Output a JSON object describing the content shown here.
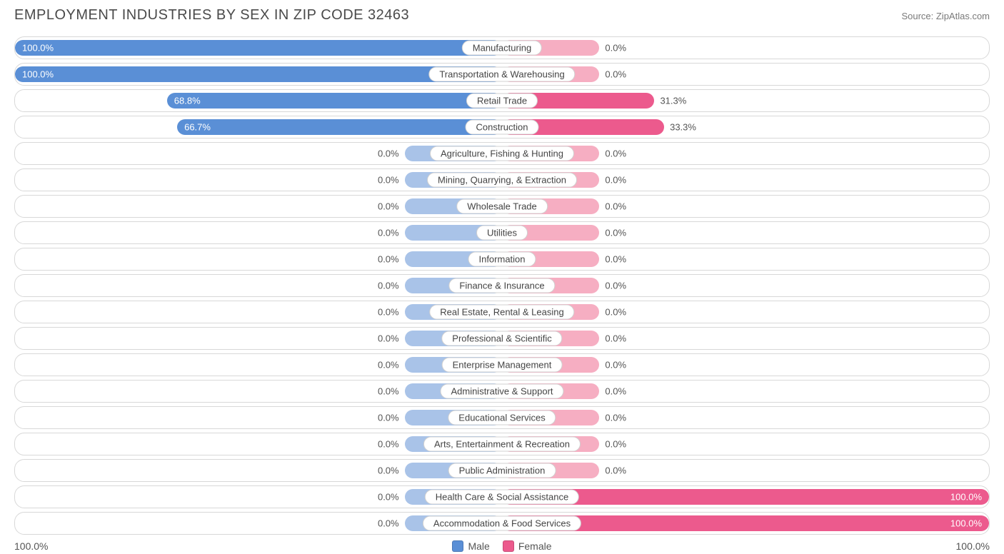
{
  "header": {
    "title": "EMPLOYMENT INDUSTRIES BY SEX IN ZIP CODE 32463",
    "source": "Source: ZipAtlas.com"
  },
  "chart": {
    "type": "diverging-bar",
    "male_color_strong": "#5a8fd6",
    "male_color_light": "#a9c3e8",
    "female_color_strong": "#ec5a8d",
    "female_color_light": "#f6aec2",
    "row_border_color": "#d8d8d8",
    "background_color": "#ffffff",
    "label_fontsize": 13,
    "title_fontsize": 20,
    "neutral_bar_pct": 20,
    "rows": [
      {
        "label": "Manufacturing",
        "male_pct": 100.0,
        "female_pct": 0.0,
        "male_label": "100.0%",
        "female_label": "0.0%",
        "neutral": false
      },
      {
        "label": "Transportation & Warehousing",
        "male_pct": 100.0,
        "female_pct": 0.0,
        "male_label": "100.0%",
        "female_label": "0.0%",
        "neutral": false
      },
      {
        "label": "Retail Trade",
        "male_pct": 68.8,
        "female_pct": 31.3,
        "male_label": "68.8%",
        "female_label": "31.3%",
        "neutral": false
      },
      {
        "label": "Construction",
        "male_pct": 66.7,
        "female_pct": 33.3,
        "male_label": "66.7%",
        "female_label": "33.3%",
        "neutral": false
      },
      {
        "label": "Agriculture, Fishing & Hunting",
        "male_pct": 0.0,
        "female_pct": 0.0,
        "male_label": "0.0%",
        "female_label": "0.0%",
        "neutral": true
      },
      {
        "label": "Mining, Quarrying, & Extraction",
        "male_pct": 0.0,
        "female_pct": 0.0,
        "male_label": "0.0%",
        "female_label": "0.0%",
        "neutral": true
      },
      {
        "label": "Wholesale Trade",
        "male_pct": 0.0,
        "female_pct": 0.0,
        "male_label": "0.0%",
        "female_label": "0.0%",
        "neutral": true
      },
      {
        "label": "Utilities",
        "male_pct": 0.0,
        "female_pct": 0.0,
        "male_label": "0.0%",
        "female_label": "0.0%",
        "neutral": true
      },
      {
        "label": "Information",
        "male_pct": 0.0,
        "female_pct": 0.0,
        "male_label": "0.0%",
        "female_label": "0.0%",
        "neutral": true
      },
      {
        "label": "Finance & Insurance",
        "male_pct": 0.0,
        "female_pct": 0.0,
        "male_label": "0.0%",
        "female_label": "0.0%",
        "neutral": true
      },
      {
        "label": "Real Estate, Rental & Leasing",
        "male_pct": 0.0,
        "female_pct": 0.0,
        "male_label": "0.0%",
        "female_label": "0.0%",
        "neutral": true
      },
      {
        "label": "Professional & Scientific",
        "male_pct": 0.0,
        "female_pct": 0.0,
        "male_label": "0.0%",
        "female_label": "0.0%",
        "neutral": true
      },
      {
        "label": "Enterprise Management",
        "male_pct": 0.0,
        "female_pct": 0.0,
        "male_label": "0.0%",
        "female_label": "0.0%",
        "neutral": true
      },
      {
        "label": "Administrative & Support",
        "male_pct": 0.0,
        "female_pct": 0.0,
        "male_label": "0.0%",
        "female_label": "0.0%",
        "neutral": true
      },
      {
        "label": "Educational Services",
        "male_pct": 0.0,
        "female_pct": 0.0,
        "male_label": "0.0%",
        "female_label": "0.0%",
        "neutral": true
      },
      {
        "label": "Arts, Entertainment & Recreation",
        "male_pct": 0.0,
        "female_pct": 0.0,
        "male_label": "0.0%",
        "female_label": "0.0%",
        "neutral": true
      },
      {
        "label": "Public Administration",
        "male_pct": 0.0,
        "female_pct": 0.0,
        "male_label": "0.0%",
        "female_label": "0.0%",
        "neutral": true
      },
      {
        "label": "Health Care & Social Assistance",
        "male_pct": 0.0,
        "female_pct": 100.0,
        "male_label": "0.0%",
        "female_label": "100.0%",
        "neutral": false
      },
      {
        "label": "Accommodation & Food Services",
        "male_pct": 0.0,
        "female_pct": 100.0,
        "male_label": "0.0%",
        "female_label": "100.0%",
        "neutral": false
      }
    ]
  },
  "footer": {
    "axis_left": "100.0%",
    "axis_right": "100.0%",
    "legend": {
      "male": "Male",
      "female": "Female"
    }
  }
}
